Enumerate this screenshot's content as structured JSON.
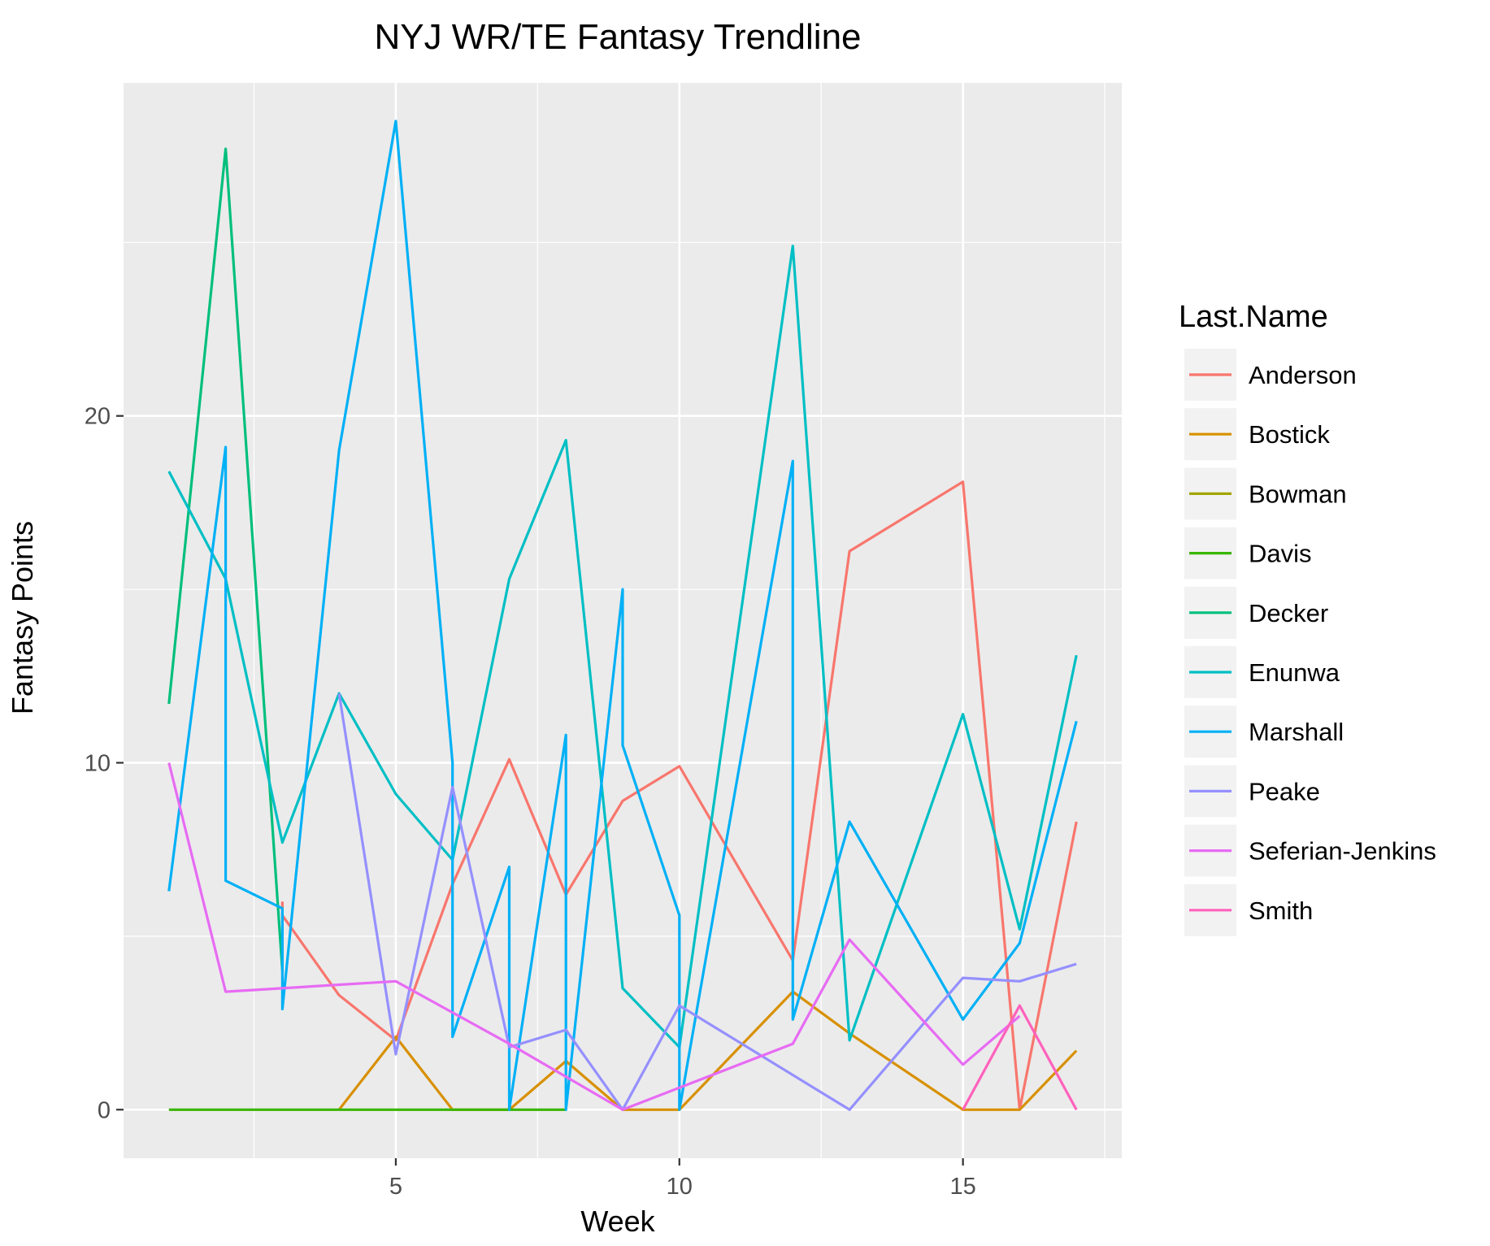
{
  "chart_data": {
    "type": "line",
    "title": "NYJ WR/TE Fantasy Trendline",
    "xlabel": "Week",
    "ylabel": "Fantasy Points",
    "xlim": [
      0.2,
      17.8
    ],
    "ylim": [
      -1.4,
      29.6
    ],
    "x_ticks": [
      5,
      10,
      15
    ],
    "x_tick_labels": [
      "5",
      "10",
      "15"
    ],
    "y_ticks": [
      0,
      10,
      20
    ],
    "y_tick_labels": [
      "0",
      "10",
      "20"
    ],
    "x_minor_ticks": [
      2.5,
      7.5,
      12.5,
      17.5
    ],
    "y_minor_ticks": [
      5,
      15,
      25
    ],
    "grid": true,
    "legend": {
      "title": "Last.Name",
      "position": "right"
    },
    "series": [
      {
        "name": "Anderson",
        "color": "#F8766D",
        "points": [
          [
            3,
            6
          ],
          [
            3,
            5.6
          ],
          [
            4,
            3.3
          ],
          [
            5,
            2
          ],
          [
            6,
            6.5
          ],
          [
            7,
            10.1
          ],
          [
            8,
            6.2
          ],
          [
            9,
            8.9
          ],
          [
            10,
            9.9
          ],
          [
            12,
            4.3
          ],
          [
            13,
            16.1
          ],
          [
            15,
            18.1
          ],
          [
            16,
            0
          ],
          [
            17,
            8.3
          ]
        ]
      },
      {
        "name": "Bostick",
        "color": "#D89000",
        "points": [
          [
            4,
            0
          ],
          [
            5,
            2.1
          ],
          [
            6,
            0
          ],
          [
            7,
            0
          ],
          [
            8,
            1.4
          ],
          [
            9,
            0
          ],
          [
            10,
            0
          ],
          [
            12,
            3.4
          ],
          [
            13,
            2.2
          ],
          [
            15,
            0
          ],
          [
            16,
            0
          ],
          [
            17,
            1.7
          ]
        ]
      },
      {
        "name": "Bowman",
        "color": "#A3A500",
        "points": []
      },
      {
        "name": "Davis",
        "color": "#39B600",
        "points": [
          [
            1,
            0
          ],
          [
            2,
            0
          ],
          [
            3,
            0
          ],
          [
            4,
            0
          ],
          [
            5,
            0
          ],
          [
            6,
            0
          ],
          [
            7,
            0
          ],
          [
            8,
            0
          ]
        ]
      },
      {
        "name": "Decker",
        "color": "#00BF7D",
        "points": [
          [
            1,
            11.7
          ],
          [
            2,
            27.7
          ],
          [
            3,
            4
          ]
        ]
      },
      {
        "name": "Enunwa",
        "color": "#00BFC4",
        "points": [
          [
            1,
            18.4
          ],
          [
            2,
            15.3
          ],
          [
            3,
            7.7
          ],
          [
            4,
            12
          ],
          [
            5,
            9.1
          ],
          [
            6,
            7.2
          ],
          [
            7,
            15.3
          ],
          [
            8,
            19.3
          ],
          [
            9,
            3.5
          ],
          [
            10,
            1.8
          ],
          [
            12,
            24.9
          ],
          [
            13,
            2
          ],
          [
            15,
            11.4
          ],
          [
            16,
            5.2
          ],
          [
            17,
            13.1
          ]
        ]
      },
      {
        "name": "Marshall",
        "color": "#00B0F6",
        "points": [
          [
            1,
            6.3
          ],
          [
            2,
            19.1
          ],
          [
            2,
            6.6
          ],
          [
            3,
            5.8
          ],
          [
            3,
            2.9
          ],
          [
            4,
            19
          ],
          [
            5,
            28.5
          ],
          [
            6,
            10
          ],
          [
            6,
            2.1
          ],
          [
            7,
            7
          ],
          [
            7,
            0
          ],
          [
            8,
            10.8
          ],
          [
            8,
            0
          ],
          [
            9,
            15
          ],
          [
            9,
            10.5
          ],
          [
            10,
            5.6
          ],
          [
            10,
            0
          ],
          [
            12,
            18.7
          ],
          [
            12,
            2.6
          ],
          [
            13,
            8.3
          ],
          [
            15,
            2.6
          ],
          [
            16,
            4.8
          ],
          [
            17,
            11.2
          ]
        ]
      },
      {
        "name": "Peake",
        "color": "#9590FF",
        "points": [
          [
            4,
            12
          ],
          [
            5,
            1.6
          ],
          [
            6,
            9.3
          ],
          [
            7,
            1.8
          ],
          [
            8,
            2.3
          ],
          [
            9,
            0
          ],
          [
            10,
            3
          ],
          [
            13,
            0
          ],
          [
            15,
            3.8
          ],
          [
            16,
            3.7
          ],
          [
            17,
            4.2
          ]
        ]
      },
      {
        "name": "Seferian-Jenkins",
        "color": "#E76BF3",
        "points": [
          [
            1,
            10
          ],
          [
            2,
            3.4
          ],
          [
            5,
            3.7
          ],
          [
            7,
            1.9
          ],
          [
            9,
            0
          ],
          [
            12,
            1.9
          ],
          [
            13,
            4.9
          ],
          [
            15,
            1.3
          ],
          [
            16,
            2.7
          ]
        ]
      },
      {
        "name": "Smith",
        "color": "#FF62BC",
        "points": [
          [
            15,
            0
          ],
          [
            16,
            3
          ],
          [
            17,
            0
          ]
        ]
      }
    ]
  }
}
